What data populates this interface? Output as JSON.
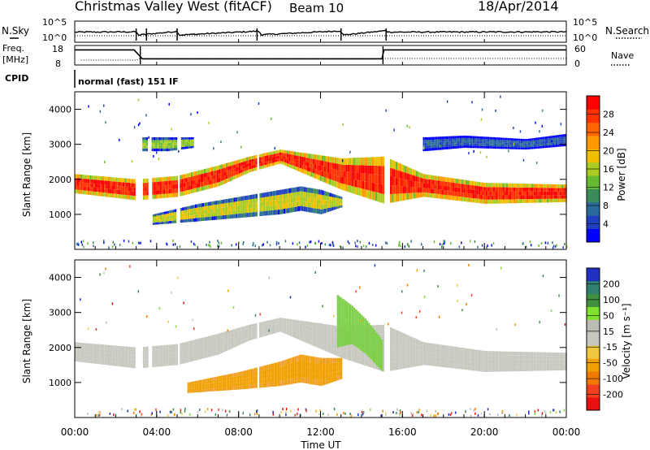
{
  "header": {
    "radar": "Christmas Valley West (fitACF)",
    "beam": "Beam 10",
    "date": "18/Apr/2014"
  },
  "top_panels": {
    "nsky_label": "N.Sky",
    "nsearch_label": "N.Search",
    "noise_ticks": [
      "10^5",
      "10^0"
    ],
    "freq_label": "Freq.",
    "freq_unit": "[MHz]",
    "freq_ticks": [
      "18",
      "8"
    ],
    "nave_label": "Nave",
    "nave_ticks": [
      "60",
      "0"
    ],
    "cpid_label": "CPID",
    "cpid_text": "normal (fast) 151 IF"
  },
  "colors": {
    "power": [
      "#0000ff",
      "#2040c0",
      "#2a6a9a",
      "#3a8a5a",
      "#66bb33",
      "#aacc22",
      "#f0c000",
      "#ff9900",
      "#ff6600",
      "#ff3300",
      "#ff0000"
    ],
    "velocity": [
      "#e81010",
      "#f04020",
      "#f07a00",
      "#f0a000",
      "#f0c840",
      "#c8c8c0",
      "#bcbcb4",
      "#80e030",
      "#409040",
      "#308070",
      "#2030c0"
    ],
    "velocity_weak": "#f0a030",
    "velocity_east": "#7ed04a",
    "range_ground": "#c8c8c0"
  },
  "chart_data": [
    {
      "type": "line",
      "title": "Christmas Valley West (fitACF) Beam 10 18/Apr/2014",
      "panel": "noise",
      "ylabel": "N.Sky",
      "y2label": "N.Search",
      "yticks": [
        "10^5",
        "10^0"
      ],
      "xlim": [
        "00:00",
        "24:00"
      ],
      "series": [
        {
          "name": "N.Sky",
          "x": [
            0,
            3,
            3.1,
            5,
            5.1,
            9,
            9.1,
            13,
            13.1,
            15.2,
            15.3,
            24
          ],
          "level": [
            1.5,
            1.6,
            0.3,
            1.8,
            0.3,
            1.9,
            0.4,
            2.0,
            0.3,
            2.1,
            1.5,
            1.6
          ]
        }
      ]
    },
    {
      "type": "line",
      "panel": "frequency",
      "ylabel": "Freq. [MHz]",
      "y2label": "Nave",
      "ylim": [
        8,
        18
      ],
      "y2lim": [
        0,
        60
      ],
      "series": [
        {
          "name": "Freq.",
          "x": [
            0,
            2.9,
            3.3,
            15.0,
            15.1,
            24
          ],
          "y": [
            16,
            16,
            11,
            11,
            16,
            16
          ]
        },
        {
          "name": "Nave",
          "x": [
            0,
            24
          ],
          "y": [
            30,
            30
          ]
        }
      ]
    },
    {
      "type": "heatmap",
      "panel": "power",
      "xlabel": "",
      "ylabel": "Slant Range [km]",
      "colorbar_label": "Power [dB]",
      "colorbar_ticks": [
        "4",
        "8",
        "12",
        "16",
        "20",
        "24",
        "28"
      ],
      "clim": [
        0,
        30
      ],
      "xlim": [
        0,
        24
      ],
      "ylim": [
        0,
        4500
      ],
      "xticks": [
        "00:00",
        "04:00",
        "08:00",
        "12:00",
        "16:00",
        "20:00",
        "00:00"
      ],
      "yticks": [
        1000,
        2000,
        3000,
        4000
      ],
      "bands": [
        {
          "name": "main echo",
          "x": [
            0,
            3,
            5,
            7,
            8.5,
            10,
            13,
            15.1,
            17,
            20,
            24
          ],
          "r0": [
            1600,
            1400,
            1500,
            1800,
            2200,
            2450,
            1700,
            1300,
            1500,
            1300,
            1350
          ],
          "r1": [
            2150,
            2000,
            2100,
            2400,
            2650,
            2850,
            2600,
            2650,
            2150,
            1900,
            1850
          ],
          "power": 29
        },
        {
          "name": "lower arc",
          "x": [
            3.8,
            6,
            8,
            10,
            11,
            12,
            13
          ],
          "r0": [
            700,
            800,
            900,
            1000,
            1100,
            1000,
            1200
          ],
          "r1": [
            1000,
            1300,
            1500,
            1700,
            1800,
            1700,
            1500
          ],
          "power": 18
        },
        {
          "name": "upper patches",
          "x": [
            3.3,
            4.5,
            5.8
          ],
          "r0": [
            2800,
            2800,
            2900
          ],
          "r1": [
            3200,
            3200,
            3200
          ],
          "power": 16
        },
        {
          "name": "late upper",
          "x": [
            17,
            19,
            22,
            24
          ],
          "r0": [
            2800,
            2900,
            2850,
            2950
          ],
          "r1": [
            3200,
            3250,
            3150,
            3300
          ],
          "power": 8
        }
      ]
    },
    {
      "type": "heatmap",
      "panel": "velocity",
      "xlabel": "Time UT",
      "ylabel": "Slant Range [km]",
      "colorbar_label": "Velocity [m s⁻¹]",
      "colorbar_ticks": [
        "-200",
        "-100",
        "-50",
        "-15",
        "15",
        "50",
        "100",
        "200"
      ],
      "clim": [
        -250,
        250
      ],
      "xlim": [
        0,
        24
      ],
      "ylim": [
        0,
        4500
      ],
      "xticks": [
        "00:00",
        "04:00",
        "08:00",
        "12:00",
        "16:00",
        "20:00",
        "00:00"
      ],
      "yticks": [
        1000,
        2000,
        3000,
        4000
      ],
      "bands": [
        {
          "name": "ground scatter",
          "x": [
            0,
            3,
            5,
            7,
            8.5,
            10,
            13,
            15.1,
            17,
            20,
            24
          ],
          "r0": [
            1600,
            1400,
            1500,
            1800,
            2200,
            2450,
            1700,
            1300,
            1500,
            1300,
            1350
          ],
          "r1": [
            2150,
            2000,
            2100,
            2400,
            2650,
            2850,
            2600,
            2650,
            2150,
            1900,
            1850
          ],
          "velocity": 0
        },
        {
          "name": "westward flow",
          "x": [
            5.5,
            8,
            10,
            11,
            12,
            13
          ],
          "r0": [
            700,
            800,
            900,
            1000,
            900,
            1100
          ],
          "r1": [
            1000,
            1300,
            1600,
            1800,
            1700,
            1700
          ],
          "velocity": -40
        },
        {
          "name": "eastward flow",
          "x": [
            12.8,
            13.5,
            14.2,
            15
          ],
          "r0": [
            2000,
            2100,
            1800,
            1300
          ],
          "r1": [
            3500,
            3200,
            2800,
            2200
          ],
          "velocity": 40
        }
      ]
    }
  ]
}
